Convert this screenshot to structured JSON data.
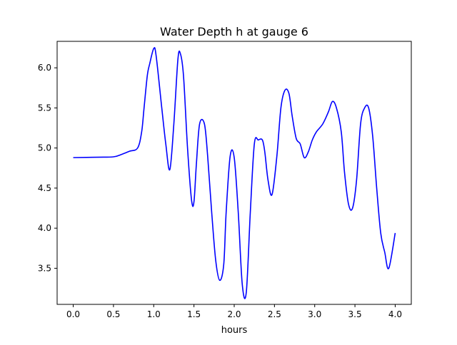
{
  "chart_data": {
    "type": "line",
    "title": "Water Depth h at gauge 6",
    "xlabel": "hours",
    "ylabel": "",
    "xlim": [
      -0.2,
      4.2
    ],
    "ylim": [
      3.05,
      6.33
    ],
    "xticks": [
      0.0,
      0.5,
      1.0,
      1.5,
      2.0,
      2.5,
      3.0,
      3.5,
      4.0
    ],
    "xtick_labels": [
      "0.0",
      "0.5",
      "1.0",
      "1.5",
      "2.0",
      "2.5",
      "3.0",
      "3.5",
      "4.0"
    ],
    "yticks": [
      3.5,
      4.0,
      4.5,
      5.0,
      5.5,
      6.0
    ],
    "ytick_labels": [
      "3.5",
      "4.0",
      "4.5",
      "5.0",
      "5.5",
      "6.0"
    ],
    "grid": false,
    "legend": "none",
    "series": [
      {
        "color": "#0000ff",
        "x": [
          0.0,
          0.3,
          0.5,
          0.6,
          0.7,
          0.8,
          0.85,
          0.88,
          0.92,
          0.95,
          1.0,
          1.03,
          1.1,
          1.15,
          1.2,
          1.25,
          1.3,
          1.33,
          1.37,
          1.42,
          1.47,
          1.5,
          1.53,
          1.57,
          1.63,
          1.67,
          1.72,
          1.77,
          1.82,
          1.87,
          1.9,
          1.95,
          2.0,
          2.05,
          2.1,
          2.15,
          2.2,
          2.25,
          2.3,
          2.35,
          2.38,
          2.42,
          2.47,
          2.53,
          2.58,
          2.63,
          2.68,
          2.72,
          2.77,
          2.82,
          2.87,
          2.92,
          2.97,
          3.02,
          3.1,
          3.17,
          3.22,
          3.27,
          3.33,
          3.37,
          3.42,
          3.47,
          3.52,
          3.57,
          3.62,
          3.67,
          3.72,
          3.77,
          3.82,
          3.87,
          3.92,
          4.0
        ],
        "y": [
          4.88,
          4.885,
          4.89,
          4.92,
          4.96,
          5.0,
          5.2,
          5.5,
          5.9,
          6.05,
          6.24,
          6.15,
          5.5,
          5.05,
          4.73,
          5.3,
          6.1,
          6.18,
          5.9,
          5.0,
          4.35,
          4.33,
          4.8,
          5.3,
          5.3,
          4.9,
          4.2,
          3.6,
          3.35,
          3.55,
          4.2,
          4.9,
          4.88,
          4.2,
          3.3,
          3.2,
          4.2,
          5.05,
          5.1,
          5.1,
          4.95,
          4.6,
          4.42,
          4.9,
          5.5,
          5.72,
          5.68,
          5.4,
          5.12,
          5.05,
          4.88,
          4.95,
          5.1,
          5.2,
          5.3,
          5.45,
          5.58,
          5.5,
          5.2,
          4.7,
          4.3,
          4.25,
          4.6,
          5.3,
          5.5,
          5.5,
          5.15,
          4.5,
          3.94,
          3.7,
          3.5,
          3.94
        ]
      }
    ]
  }
}
